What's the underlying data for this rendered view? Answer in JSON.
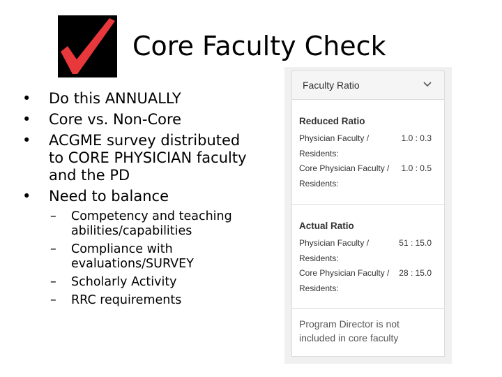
{
  "slide": {
    "title": "Core Faculty Check",
    "bullets": [
      "Do this ANNUALLY",
      "Core vs. Non-Core",
      "ACGME survey distributed to CORE PHYSICIAN faculty and the PD",
      "Need to balance"
    ],
    "sub_bullets": [
      "Competency and teaching abilities/capabilities",
      "Compliance with evaluations/SURVEY",
      "Scholarly Activity",
      "RRC requirements"
    ],
    "bullet_glyph": "•",
    "dash_glyph": "–",
    "logo_icon": "red-checkmark-icon"
  },
  "panel": {
    "header": "Faculty Ratio",
    "reduced": {
      "title": "Reduced Ratio",
      "rows": [
        {
          "label": "Physician Faculty / Residents:",
          "value": "1.0 : 0.3"
        },
        {
          "label": "Core Physician Faculty / Residents:",
          "value": "1.0 : 0.5"
        }
      ]
    },
    "actual": {
      "title": "Actual Ratio",
      "rows": [
        {
          "label": "Physician Faculty / Residents:",
          "value": "51 : 15.0"
        },
        {
          "label": "Core Physician Faculty / Residents:",
          "value": "28 : 15.0"
        }
      ]
    },
    "note": "Program Director is not included in core faculty"
  },
  "colors": {
    "check_red": "#e8383b",
    "logo_bg": "#000000",
    "panel_text": "#333333",
    "note_text": "#555555"
  }
}
